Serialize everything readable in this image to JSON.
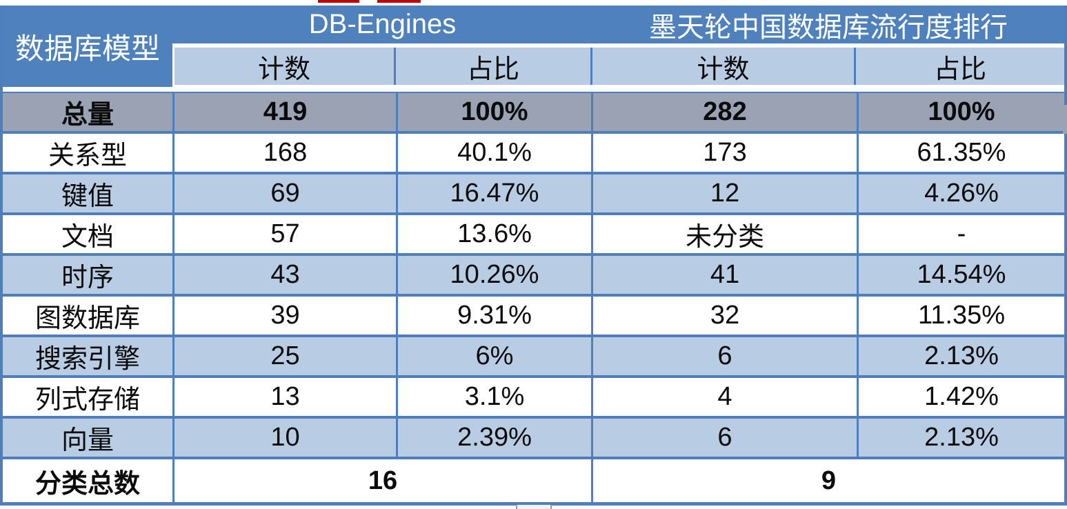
{
  "table": {
    "corner_header": "数据库模型",
    "group_headers": [
      {
        "label": "DB-Engines"
      },
      {
        "label": "墨天轮中国数据库流行度排行"
      }
    ],
    "sub_headers": [
      "计数",
      "占比",
      "计数",
      "占比"
    ],
    "total_row": {
      "label": "总量",
      "values": [
        "419",
        "100%",
        "282",
        "100%"
      ]
    },
    "rows": [
      {
        "label": "关系型",
        "values": [
          "168",
          "40.1%",
          "173",
          "61.35%"
        ]
      },
      {
        "label": "键值",
        "values": [
          "69",
          "16.47%",
          "12",
          "4.26%"
        ]
      },
      {
        "label": "文档",
        "values": [
          "57",
          "13.6%",
          "未分类",
          "-"
        ]
      },
      {
        "label": "时序",
        "values": [
          "43",
          "10.26%",
          "41",
          "14.54%"
        ]
      },
      {
        "label": "图数据库",
        "values": [
          "39",
          "9.31%",
          "32",
          "11.35%"
        ]
      },
      {
        "label": "搜索引擎",
        "values": [
          "25",
          "6%",
          "6",
          "2.13%"
        ]
      },
      {
        "label": "列式存储",
        "values": [
          "13",
          "3.1%",
          "4",
          "1.42%"
        ]
      },
      {
        "label": "向量",
        "values": [
          "10",
          "2.39%",
          "6",
          "2.13%"
        ]
      }
    ],
    "footer_row": {
      "label": "分类总数",
      "values": [
        "16",
        "9"
      ]
    }
  },
  "chart_data": {
    "type": "table",
    "title": "",
    "columns": [
      "数据库模型",
      "DB-Engines 计数",
      "DB-Engines 占比",
      "墨天轮中国数据库流行度排行 计数",
      "墨天轮中国数据库流行度排行 占比"
    ],
    "rows": [
      [
        "总量",
        "419",
        "100%",
        "282",
        "100%"
      ],
      [
        "关系型",
        "168",
        "40.1%",
        "173",
        "61.35%"
      ],
      [
        "键值",
        "69",
        "16.47%",
        "12",
        "4.26%"
      ],
      [
        "文档",
        "57",
        "13.6%",
        "未分类",
        "-"
      ],
      [
        "时序",
        "43",
        "10.26%",
        "41",
        "14.54%"
      ],
      [
        "图数据库",
        "39",
        "9.31%",
        "32",
        "11.35%"
      ],
      [
        "搜索引擎",
        "25",
        "6%",
        "6",
        "2.13%"
      ],
      [
        "列式存储",
        "13",
        "3.1%",
        "4",
        "1.42%"
      ],
      [
        "向量",
        "10",
        "2.39%",
        "6",
        "2.13%"
      ],
      [
        "分类总数",
        "16",
        "",
        "9",
        ""
      ]
    ]
  },
  "colors": {
    "header_blue": "#4f81bd",
    "band_blue": "#b8cce4",
    "total_gray": "#99a3b4",
    "border_blue": "#4e7fbc",
    "artifact_red": "#c00000"
  }
}
